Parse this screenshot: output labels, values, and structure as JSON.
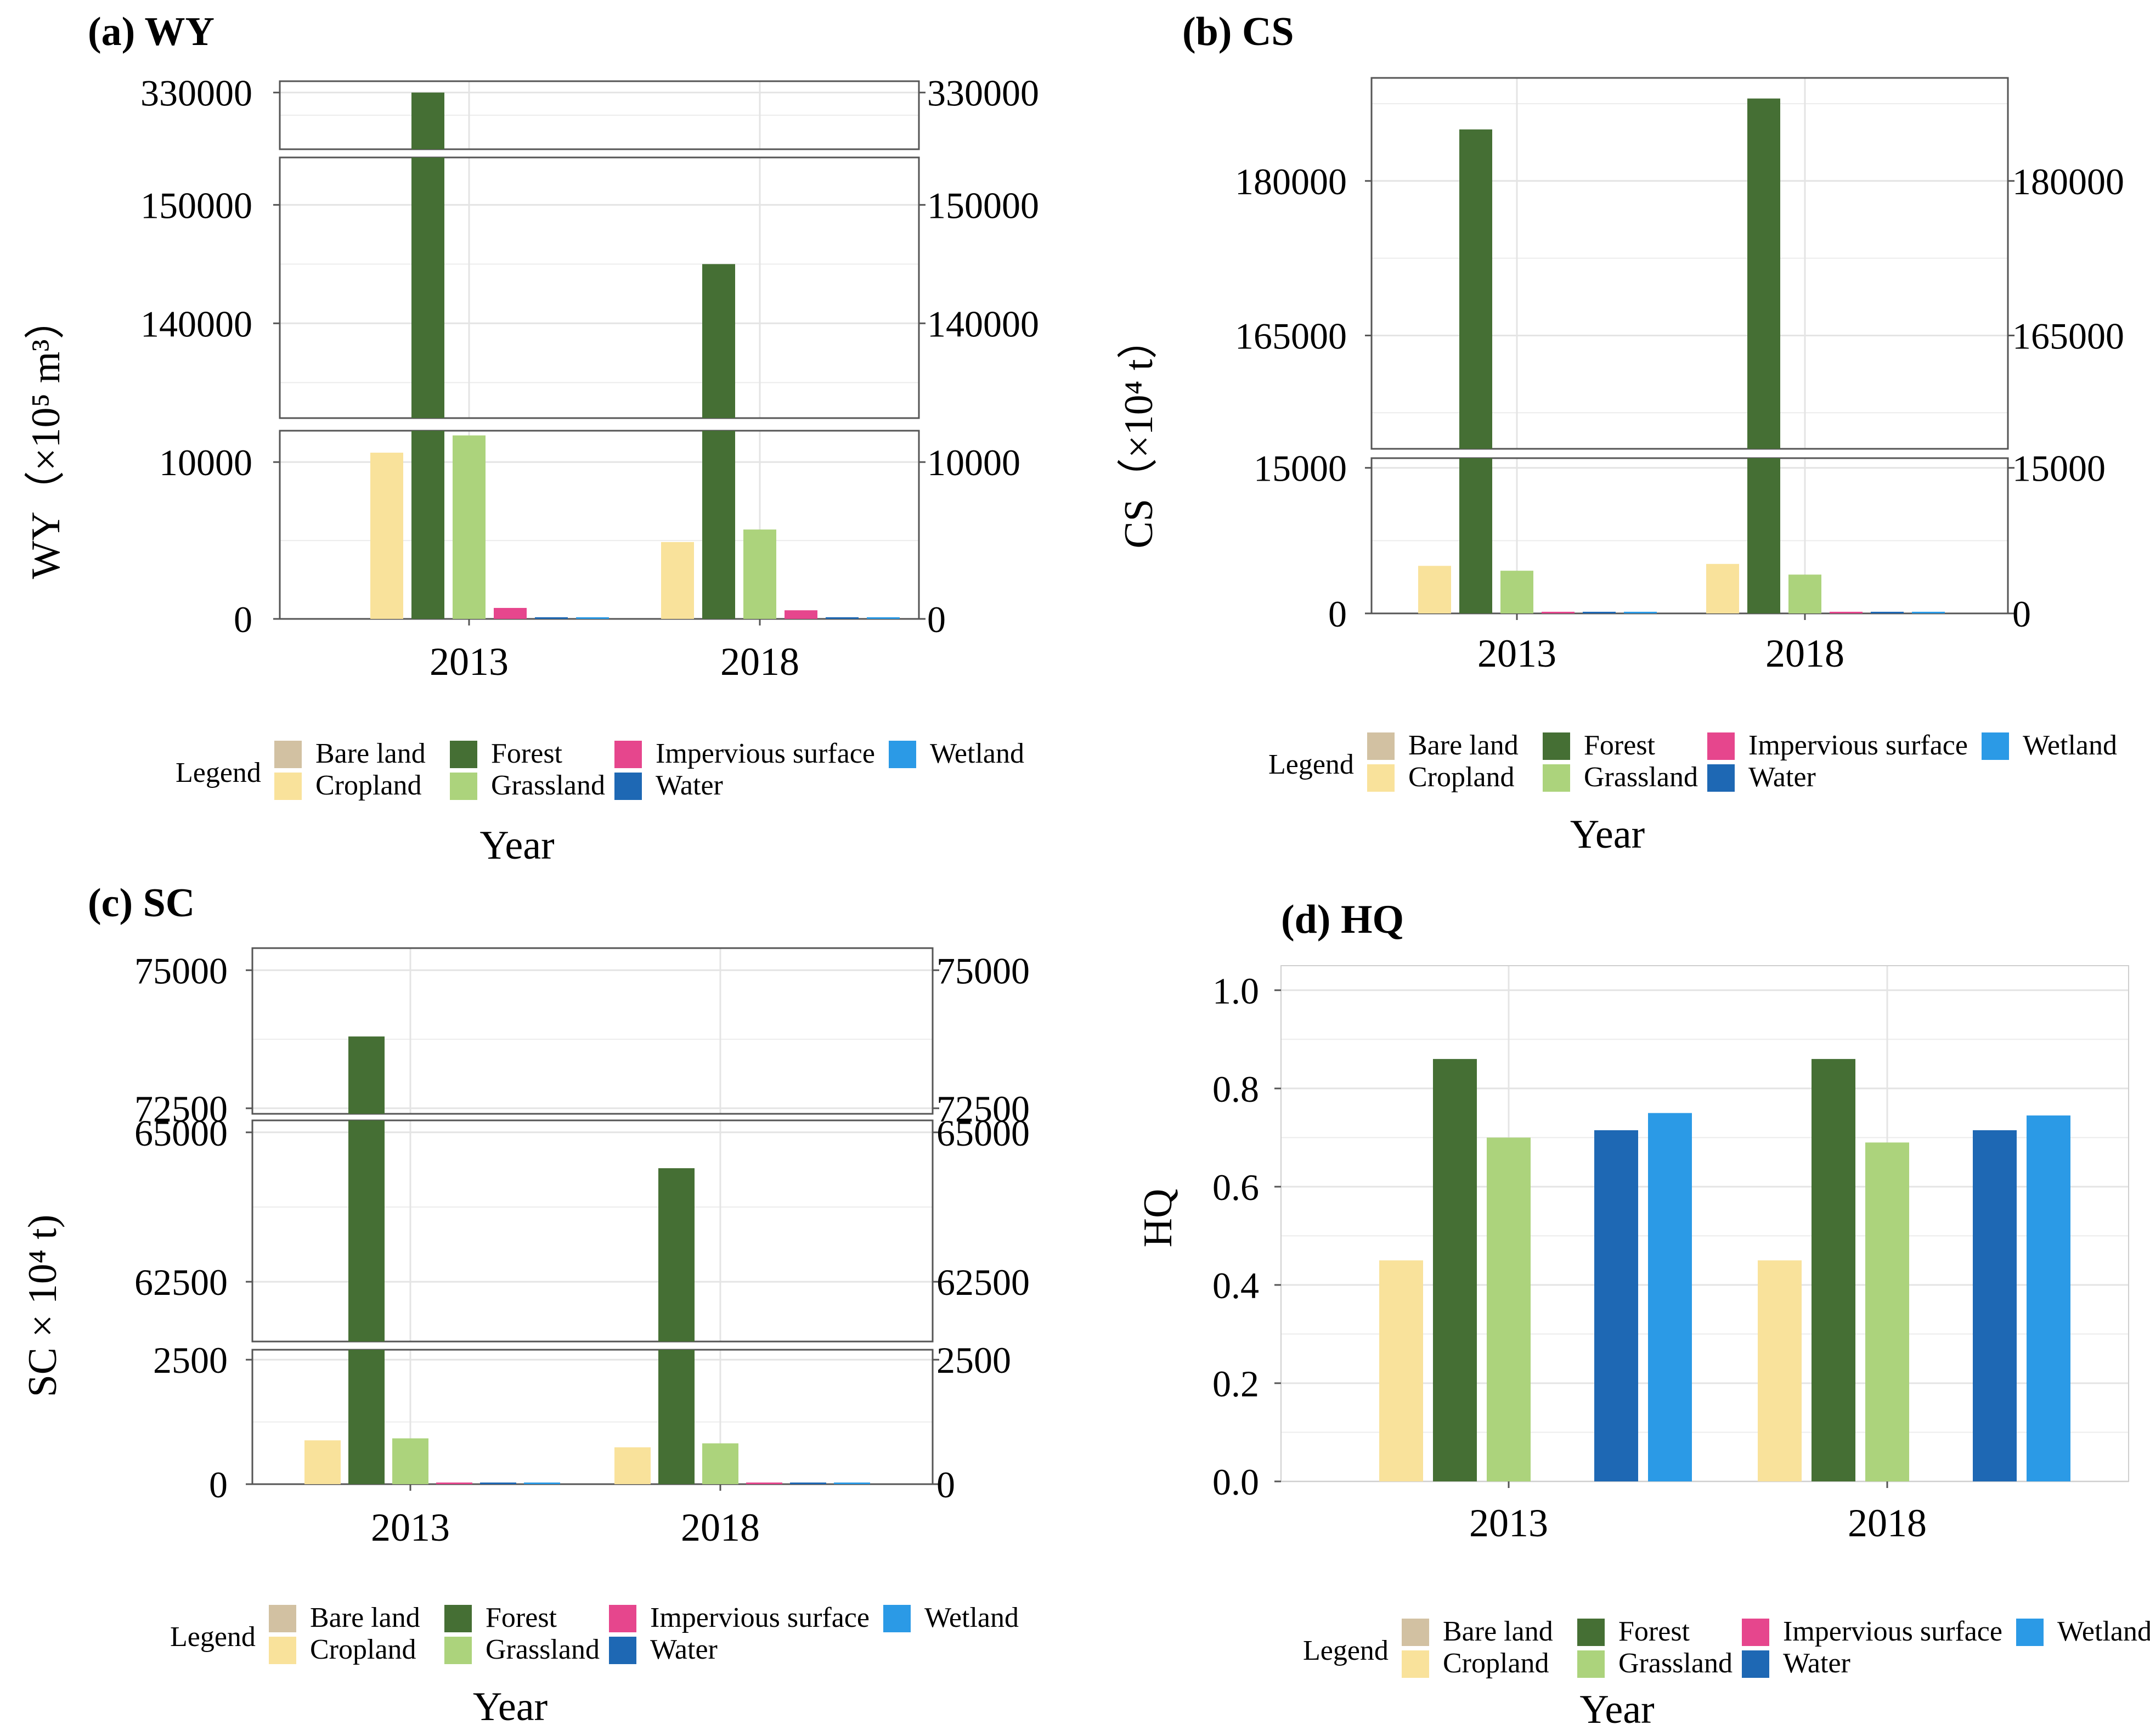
{
  "figure": {
    "legend_label": "Legend",
    "legend_items": [
      {
        "name": "Bare land",
        "color": "#d2c1a2"
      },
      {
        "name": "Cropland",
        "color": "#f9e29b"
      },
      {
        "name": "Forest",
        "color": "#456f34"
      },
      {
        "name": "Grassland",
        "color": "#acd37c"
      },
      {
        "name": "Impervious surface",
        "color": "#e6468d"
      },
      {
        "name": "Water",
        "color": "#1e68b4"
      },
      {
        "name": "Wetland",
        "color": "#2b9ae6"
      }
    ]
  },
  "chart_data": [
    {
      "type": "bar",
      "panel": "a",
      "title": "(a) WY",
      "ylabel": "WY（×10⁵ m³）",
      "xlabel": "Year",
      "categories": [
        "2013",
        "2018"
      ],
      "axis_break": true,
      "segments": [
        {
          "range": [
            0,
            12000
          ],
          "ticks": [
            "0",
            "10000"
          ]
        },
        {
          "range": [
            132000,
            154000
          ],
          "ticks": [
            "140000",
            "150000"
          ]
        },
        {
          "range": [
            320000,
            332000
          ],
          "ticks": [
            "330000"
          ]
        }
      ],
      "series": [
        {
          "name": "Bare land",
          "values": [
            0,
            0
          ]
        },
        {
          "name": "Cropland",
          "values": [
            10600,
            4900
          ]
        },
        {
          "name": "Forest",
          "values": [
            330000,
            145000
          ]
        },
        {
          "name": "Grassland",
          "values": [
            11700,
            5700
          ]
        },
        {
          "name": "Impervious surface",
          "values": [
            700,
            550
          ]
        },
        {
          "name": "Water",
          "values": [
            60,
            50
          ]
        },
        {
          "name": "Wetland",
          "values": [
            40,
            40
          ]
        }
      ]
    },
    {
      "type": "bar",
      "panel": "b",
      "title": "(b) CS",
      "ylabel": "CS（×10⁴ t）",
      "xlabel": "Year",
      "categories": [
        "2013",
        "2018"
      ],
      "axis_break": true,
      "segments": [
        {
          "range": [
            0,
            16000
          ],
          "ticks": [
            "0",
            "15000"
          ]
        },
        {
          "range": [
            154000,
            190000
          ],
          "ticks": [
            "165000",
            "180000"
          ]
        }
      ],
      "series": [
        {
          "name": "Bare land",
          "values": [
            0,
            0
          ]
        },
        {
          "name": "Cropland",
          "values": [
            4900,
            5100
          ]
        },
        {
          "name": "Forest",
          "values": [
            185000,
            188000
          ]
        },
        {
          "name": "Grassland",
          "values": [
            4400,
            4000
          ]
        },
        {
          "name": "Impervious surface",
          "values": [
            150,
            150
          ]
        },
        {
          "name": "Water",
          "values": [
            40,
            40
          ]
        },
        {
          "name": "Wetland",
          "values": [
            30,
            30
          ]
        }
      ]
    },
    {
      "type": "bar",
      "panel": "c",
      "title": "(c) SC",
      "ylabel": "SC × 10⁴ t)",
      "xlabel": "Year",
      "categories": [
        "2013",
        "2018"
      ],
      "axis_break": true,
      "segments": [
        {
          "range": [
            0,
            2700
          ],
          "ticks": [
            "0",
            "2500"
          ]
        },
        {
          "range": [
            61500,
            65200
          ],
          "ticks": [
            "62500",
            "65000"
          ]
        },
        {
          "range": [
            72400,
            75400
          ],
          "ticks": [
            "72500",
            "75000"
          ]
        }
      ],
      "series": [
        {
          "name": "Bare land",
          "values": [
            0,
            0
          ]
        },
        {
          "name": "Cropland",
          "values": [
            880,
            740
          ]
        },
        {
          "name": "Forest",
          "values": [
            73800,
            64400
          ]
        },
        {
          "name": "Grassland",
          "values": [
            920,
            820
          ]
        },
        {
          "name": "Impervious surface",
          "values": [
            25,
            25
          ]
        },
        {
          "name": "Water",
          "values": [
            30,
            30
          ]
        },
        {
          "name": "Wetland",
          "values": [
            20,
            20
          ]
        }
      ]
    },
    {
      "type": "bar",
      "panel": "d",
      "title": "(d) HQ",
      "ylabel": "HQ",
      "xlabel": "Year",
      "categories": [
        "2013",
        "2018"
      ],
      "axis_break": false,
      "segments": [
        {
          "range": [
            0,
            1.05
          ],
          "ticks": [
            "0.0",
            "0.2",
            "0.4",
            "0.6",
            "0.8",
            "1.0"
          ]
        }
      ],
      "series": [
        {
          "name": "Bare land",
          "values": [
            0,
            0
          ]
        },
        {
          "name": "Cropland",
          "values": [
            0.45,
            0.45
          ]
        },
        {
          "name": "Forest",
          "values": [
            0.86,
            0.86
          ]
        },
        {
          "name": "Grassland",
          "values": [
            0.7,
            0.69
          ]
        },
        {
          "name": "Impervious surface",
          "values": [
            0,
            0
          ]
        },
        {
          "name": "Water",
          "values": [
            0.715,
            0.715
          ]
        },
        {
          "name": "Wetland",
          "values": [
            0.75,
            0.745
          ]
        }
      ]
    }
  ]
}
